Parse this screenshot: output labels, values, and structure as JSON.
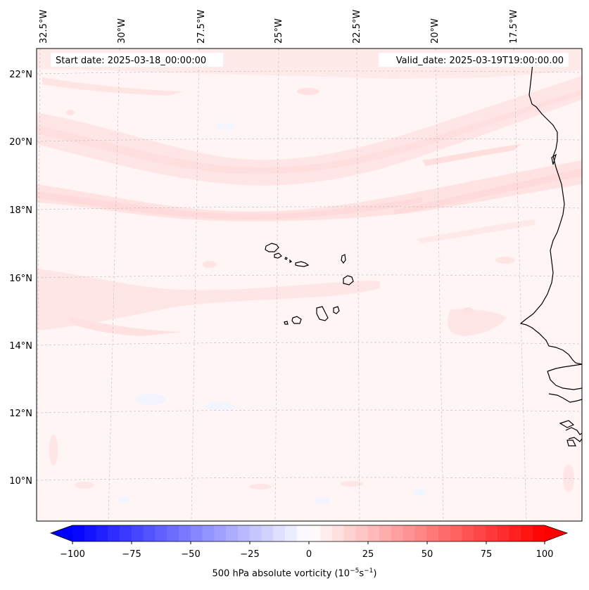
{
  "map": {
    "lon_labels": [
      "32.5°W",
      "30°W",
      "27.5°W",
      "25°W",
      "22.5°W",
      "20°W",
      "17.5°W"
    ],
    "lat_labels": [
      "22°N",
      "20°N",
      "18°N",
      "16°N",
      "14°N",
      "12°N",
      "10°N"
    ],
    "start_date": "Start date: 2025-03-18_00:00:00",
    "valid_date": "Valid_date: 2025-03-19T19:00:00.00"
  },
  "colorbar": {
    "ticks": [
      "−100",
      "−75",
      "−50",
      "−25",
      "0",
      "25",
      "50",
      "75",
      "100"
    ],
    "title_prefix": "500 hPa absolute vorticity (10",
    "exp1": "−5",
    "mid": "s",
    "exp2": "−1",
    "suffix": ")",
    "min": -100,
    "max": 100,
    "step": 5,
    "low_color": "#0000ff",
    "high_color": "#ff0000"
  },
  "colors": {
    "background_field": "#fff5f5",
    "band_light": "#ffe9e9",
    "band_mid": "#ffdcdc",
    "blue_patch": "#f2f5ff",
    "coast": "#000000",
    "grid": "#bbbbbb"
  }
}
